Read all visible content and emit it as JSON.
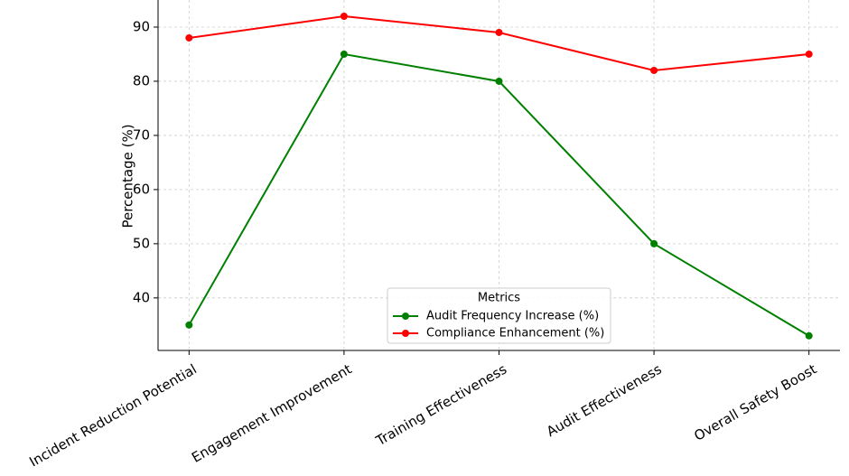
{
  "chart_data": {
    "type": "line",
    "y_label": "Percentage (%)",
    "categories": [
      "Incident Reduction Potential",
      "Engagement Improvement",
      "Training Effectiveness",
      "Audit Effectiveness",
      "Overall Safety Boost"
    ],
    "series": [
      {
        "name": "Audit Frequency Increase (%)",
        "color": "#008000",
        "values": [
          35,
          85,
          80,
          50,
          33
        ]
      },
      {
        "name": "Compliance Enhancement (%)",
        "color": "#ff0000",
        "values": [
          88,
          92,
          89,
          82,
          85
        ]
      }
    ],
    "ylim": [
      30.3,
      95
    ],
    "yticks": [
      40,
      50,
      60,
      70,
      80,
      90
    ],
    "grid": true,
    "legend_title": "Metrics",
    "legend_loc": "lower center"
  }
}
